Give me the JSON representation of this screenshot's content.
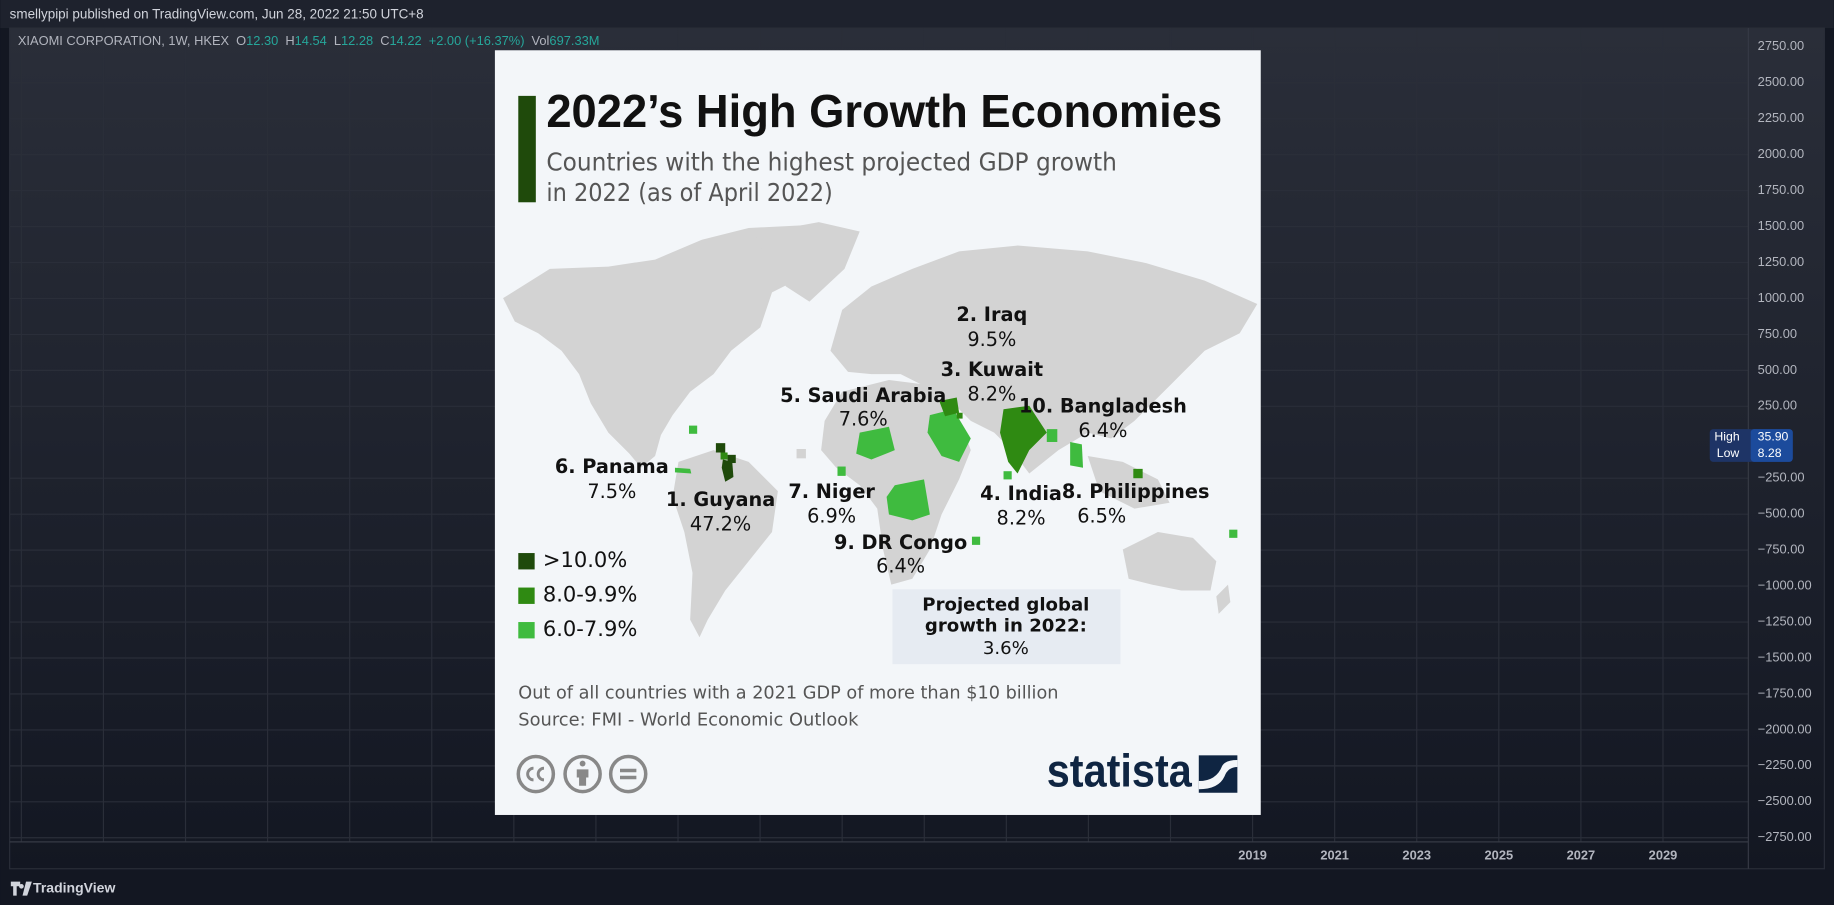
{
  "header": {
    "publisher": "smellypipi published on TradingView.com, Jun 28, 2022 21:50 UTC+8"
  },
  "symbol": {
    "name": "XIAOMI CORPORATION, 1W, HKEX",
    "open_label": "O",
    "open": "12.30",
    "high_label": "H",
    "high": "14.54",
    "low_label": "L",
    "low": "12.28",
    "close_label": "C",
    "close": "14.22",
    "change": "+2.00 (+16.37%)",
    "volume_label": "Vol",
    "volume": "697.33M"
  },
  "price_axis": [
    "2750.00",
    "2500.00",
    "2250.00",
    "2000.00",
    "1750.00",
    "1500.00",
    "1250.00",
    "1000.00",
    "750.00",
    "500.00",
    "250.00",
    "−250.00",
    "−500.00",
    "−750.00",
    "−1000.00",
    "−1250.00",
    "−1500.00",
    "−1750.00",
    "−2000.00",
    "−2250.00",
    "−2500.00",
    "−2750.00"
  ],
  "time_axis": [
    "2019",
    "2021",
    "2023",
    "2025",
    "2027",
    "2029"
  ],
  "range_badge": {
    "high_label": "High",
    "high": "35.90",
    "low_label": "Low",
    "low": "8.28"
  },
  "infographic": {
    "title": "2022’s High Growth Economies",
    "subtitle": [
      "Countries with the highest projected GDP growth",
      "in 2022 (as of April 2022)"
    ],
    "countries": [
      {
        "label": "1. Guyana",
        "value": "47.2%"
      },
      {
        "label": "2. Iraq",
        "value": "9.5%"
      },
      {
        "label": "3. Kuwait",
        "value": "8.2%"
      },
      {
        "label": "4. India",
        "value": "8.2%"
      },
      {
        "label": "5. Saudi Arabia",
        "value": "7.6%"
      },
      {
        "label": "6. Panama",
        "value": "7.5%"
      },
      {
        "label": "7. Niger",
        "value": "6.9%"
      },
      {
        "label": "8. Philippines",
        "value": "6.5%"
      },
      {
        "label": "9. DR Congo",
        "value": "6.4%"
      },
      {
        "label": "10. Bangladesh",
        "value": "6.4%"
      }
    ],
    "legend": [
      ">10.0%",
      "8.0-9.9%",
      "6.0-7.9%"
    ],
    "global": [
      "Projected global",
      "growth in 2022:",
      "3.6%"
    ],
    "note": "Out of all countries with a 2021 GDP of more than $10 billion",
    "source": "Source: FMI - World Economic Outlook",
    "brand": "statista"
  },
  "footer": {
    "brand": "TradingView"
  }
}
